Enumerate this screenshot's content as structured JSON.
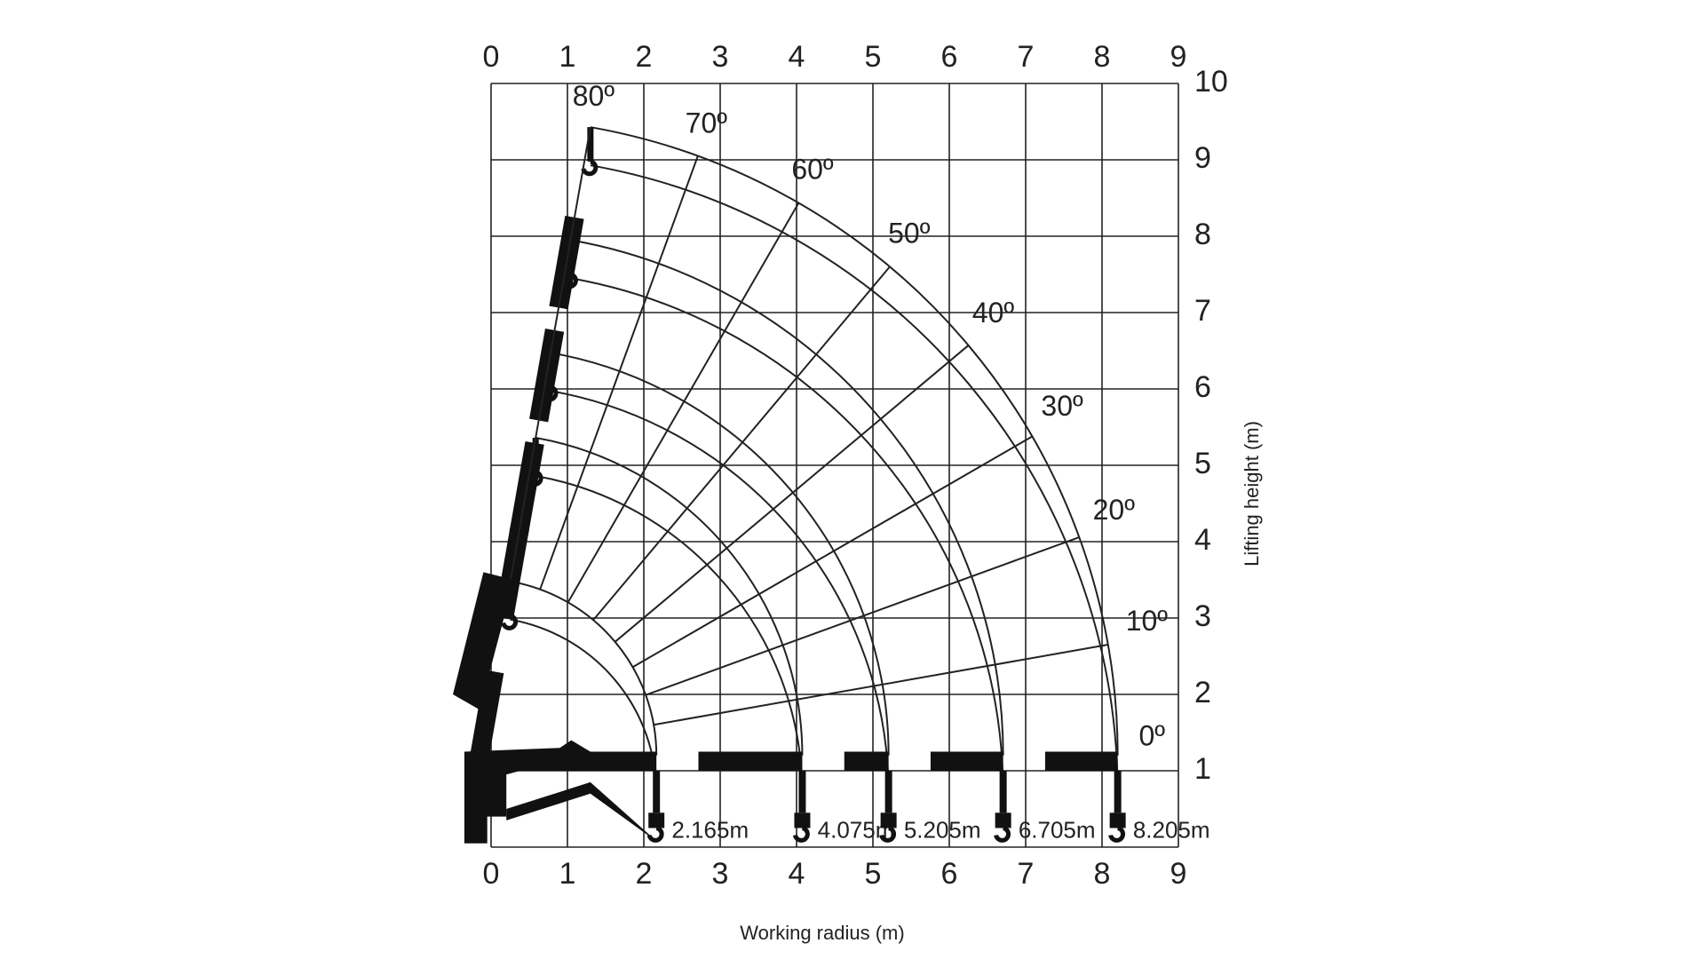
{
  "x_axis": {
    "label": "Working radius (m)",
    "ticks": [
      0,
      1,
      2,
      3,
      4,
      5,
      6,
      7,
      8,
      9
    ]
  },
  "y_axis": {
    "label": "Lifting height (m)",
    "ticks": [
      1,
      2,
      3,
      4,
      5,
      6,
      7,
      8,
      9,
      10
    ]
  },
  "angles": [
    {
      "value": 0,
      "label": "0º"
    },
    {
      "value": 10,
      "label": "10º"
    },
    {
      "value": 20,
      "label": "20º"
    },
    {
      "value": 30,
      "label": "30º"
    },
    {
      "value": 40,
      "label": "40º"
    },
    {
      "value": 50,
      "label": "50º"
    },
    {
      "value": 60,
      "label": "60º"
    },
    {
      "value": 70,
      "label": "70º"
    },
    {
      "value": 80,
      "label": "80º"
    }
  ],
  "reaches": [
    {
      "value": 2.165,
      "label": "2.165m"
    },
    {
      "value": 4.075,
      "label": "4.075m"
    },
    {
      "value": 5.205,
      "label": "5.205m"
    },
    {
      "value": 6.705,
      "label": "6.705m"
    },
    {
      "value": 8.205,
      "label": "8.205m"
    }
  ]
}
